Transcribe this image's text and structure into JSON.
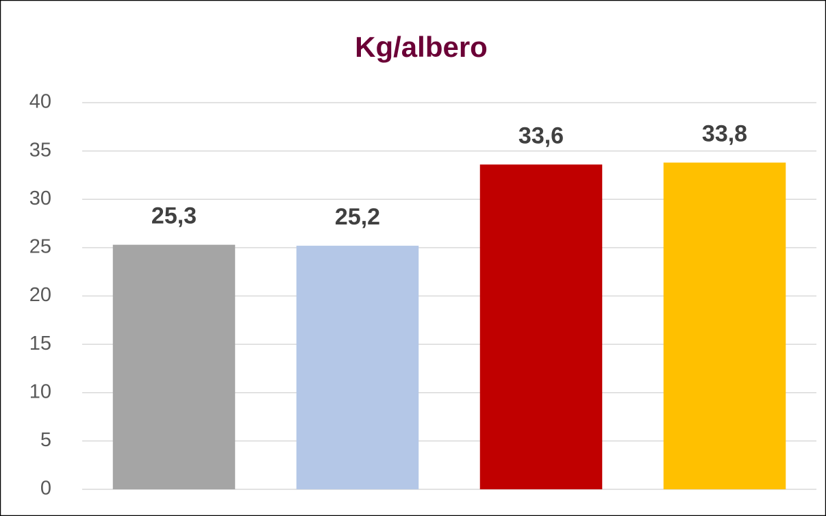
{
  "chart_data": {
    "type": "bar",
    "title": "Kg/albero",
    "categories": [
      null,
      null,
      null,
      null
    ],
    "values": [
      25.3,
      25.2,
      33.6,
      33.8
    ],
    "value_labels": [
      "25,3",
      "25,2",
      "33,6",
      "33,8"
    ],
    "colors": [
      "#a5a5a5",
      "#b4c7e7",
      "#c00000",
      "#ffc000"
    ],
    "ylim": [
      0,
      40
    ],
    "yticks": [
      0,
      5,
      10,
      15,
      20,
      25,
      30,
      35,
      40
    ],
    "grid": true
  }
}
